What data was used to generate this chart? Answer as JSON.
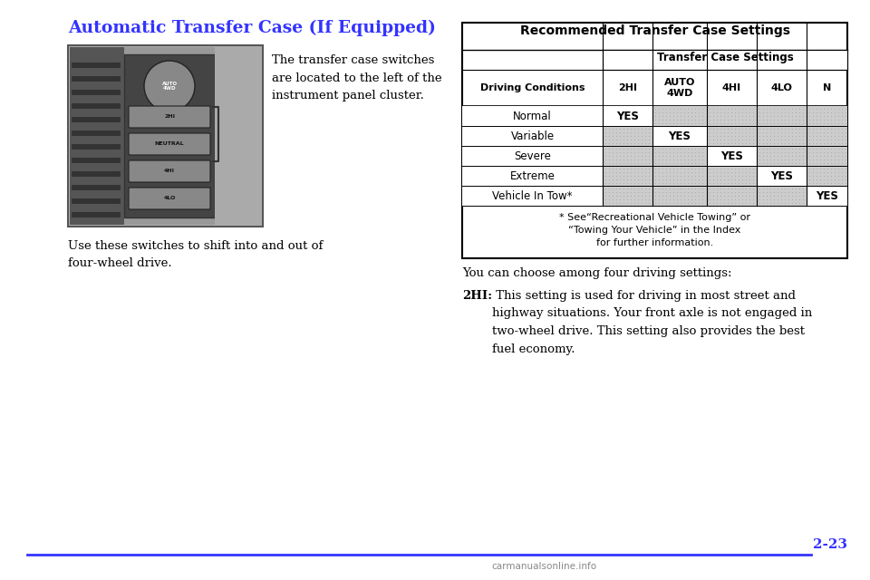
{
  "title": "Automatic Transfer Case (If Equipped)",
  "title_color": "#3333ff",
  "bg_color": "#ffffff",
  "page_number": "2-23",
  "left_text_1": "The transfer case switches\nare located to the left of the\ninstrument panel cluster.",
  "left_text_2": "Use these switches to shift into and out of\nfour-wheel drive.",
  "right_text_1": "You can choose among four driving settings:",
  "right_text_2_bold": "2HI:",
  "right_text_2_rest": " This setting is used for driving in most street and\nhighway situations. Your front axle is not engaged in\ntwo-wheel drive. This setting also provides the best\nfuel economy.",
  "table_title": "Recommended Transfer Case Settings",
  "table_subtitle": "Transfer Case Settings",
  "col_headers": [
    "Driving Conditions",
    "2HI",
    "AUTO\n4WD",
    "4HI",
    "4LO",
    "N"
  ],
  "rows": [
    [
      "Normal",
      "YES",
      "",
      "",
      "",
      ""
    ],
    [
      "Variable",
      "",
      "YES",
      "",
      "",
      ""
    ],
    [
      "Severe",
      "",
      "",
      "YES",
      "",
      ""
    ],
    [
      "Extreme",
      "",
      "",
      "",
      "YES",
      ""
    ],
    [
      "Vehicle In Tow*",
      "",
      "",
      "",
      "",
      "YES"
    ]
  ],
  "table_note_line1": "* See“Recreational Vehicle Towing” or",
  "table_note_line2": "“Towing Your Vehicle” in the Index",
  "table_note_line3": "for further information.",
  "footer_line_color": "#3333ff",
  "page_num_color": "#3333ff",
  "watermark": "carmanualsonline.info",
  "watermark_color": "#888888"
}
